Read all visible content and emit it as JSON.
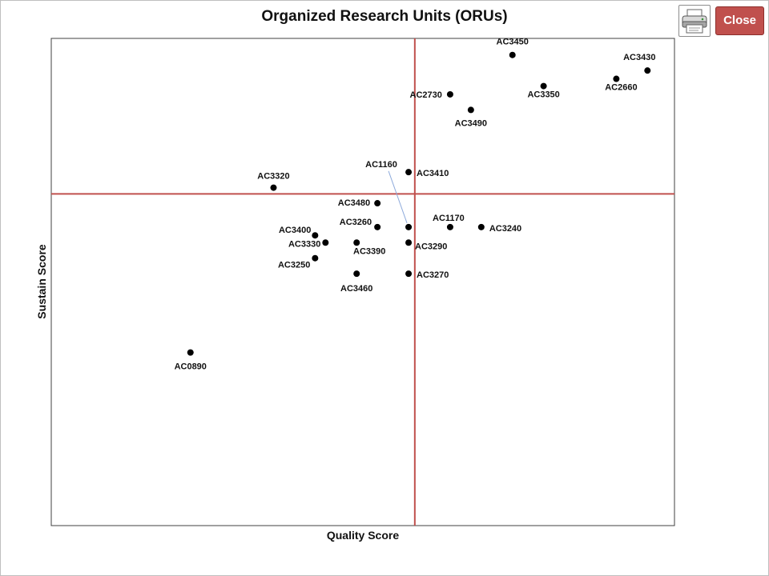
{
  "window": {
    "close_label": "Close",
    "print_icon": "printer-icon"
  },
  "chart_data": {
    "type": "scatter",
    "title": "Organized Research Units (ORUs)",
    "xlabel": "Quality Score",
    "ylabel": "Sustain Score",
    "grid": false,
    "quadrant_lines": {
      "x": 0,
      "y": 0,
      "color": "#c0504d"
    },
    "point_color": "#000000",
    "points": [
      {
        "label": "AC3450",
        "x": 0.94,
        "y": 1.34
      },
      {
        "label": "AC3430",
        "x": 2.24,
        "y": 1.19
      },
      {
        "label": "AC2660",
        "x": 1.94,
        "y": 1.11
      },
      {
        "label": "AC3350",
        "x": 1.24,
        "y": 1.04
      },
      {
        "label": "AC2730",
        "x": 0.34,
        "y": 0.96
      },
      {
        "label": "AC3490",
        "x": 0.54,
        "y": 0.81
      },
      {
        "label": "AC1160",
        "x": -0.06,
        "y": -0.32
      },
      {
        "label": "AC3410",
        "x": -0.06,
        "y": 0.21
      },
      {
        "label": "AC3320",
        "x": -1.36,
        "y": 0.06
      },
      {
        "label": "AC3480",
        "x": -0.36,
        "y": -0.09
      },
      {
        "label": "AC1170",
        "x": 0.34,
        "y": -0.32
      },
      {
        "label": "AC3240",
        "x": 0.64,
        "y": -0.32
      },
      {
        "label": "AC3260",
        "x": -0.36,
        "y": -0.32
      },
      {
        "label": "AC3290",
        "x": -0.06,
        "y": -0.47
      },
      {
        "label": "AC3400",
        "x": -0.96,
        "y": -0.4
      },
      {
        "label": "AC3330",
        "x": -0.86,
        "y": -0.47
      },
      {
        "label": "AC3390",
        "x": -0.56,
        "y": -0.47
      },
      {
        "label": "AC3250",
        "x": -0.96,
        "y": -0.62
      },
      {
        "label": "AC3460",
        "x": -0.56,
        "y": -0.77
      },
      {
        "label": "AC3270",
        "x": -0.06,
        "y": -0.77
      },
      {
        "label": "AC0890",
        "x": -2.16,
        "y": -1.53
      }
    ]
  }
}
